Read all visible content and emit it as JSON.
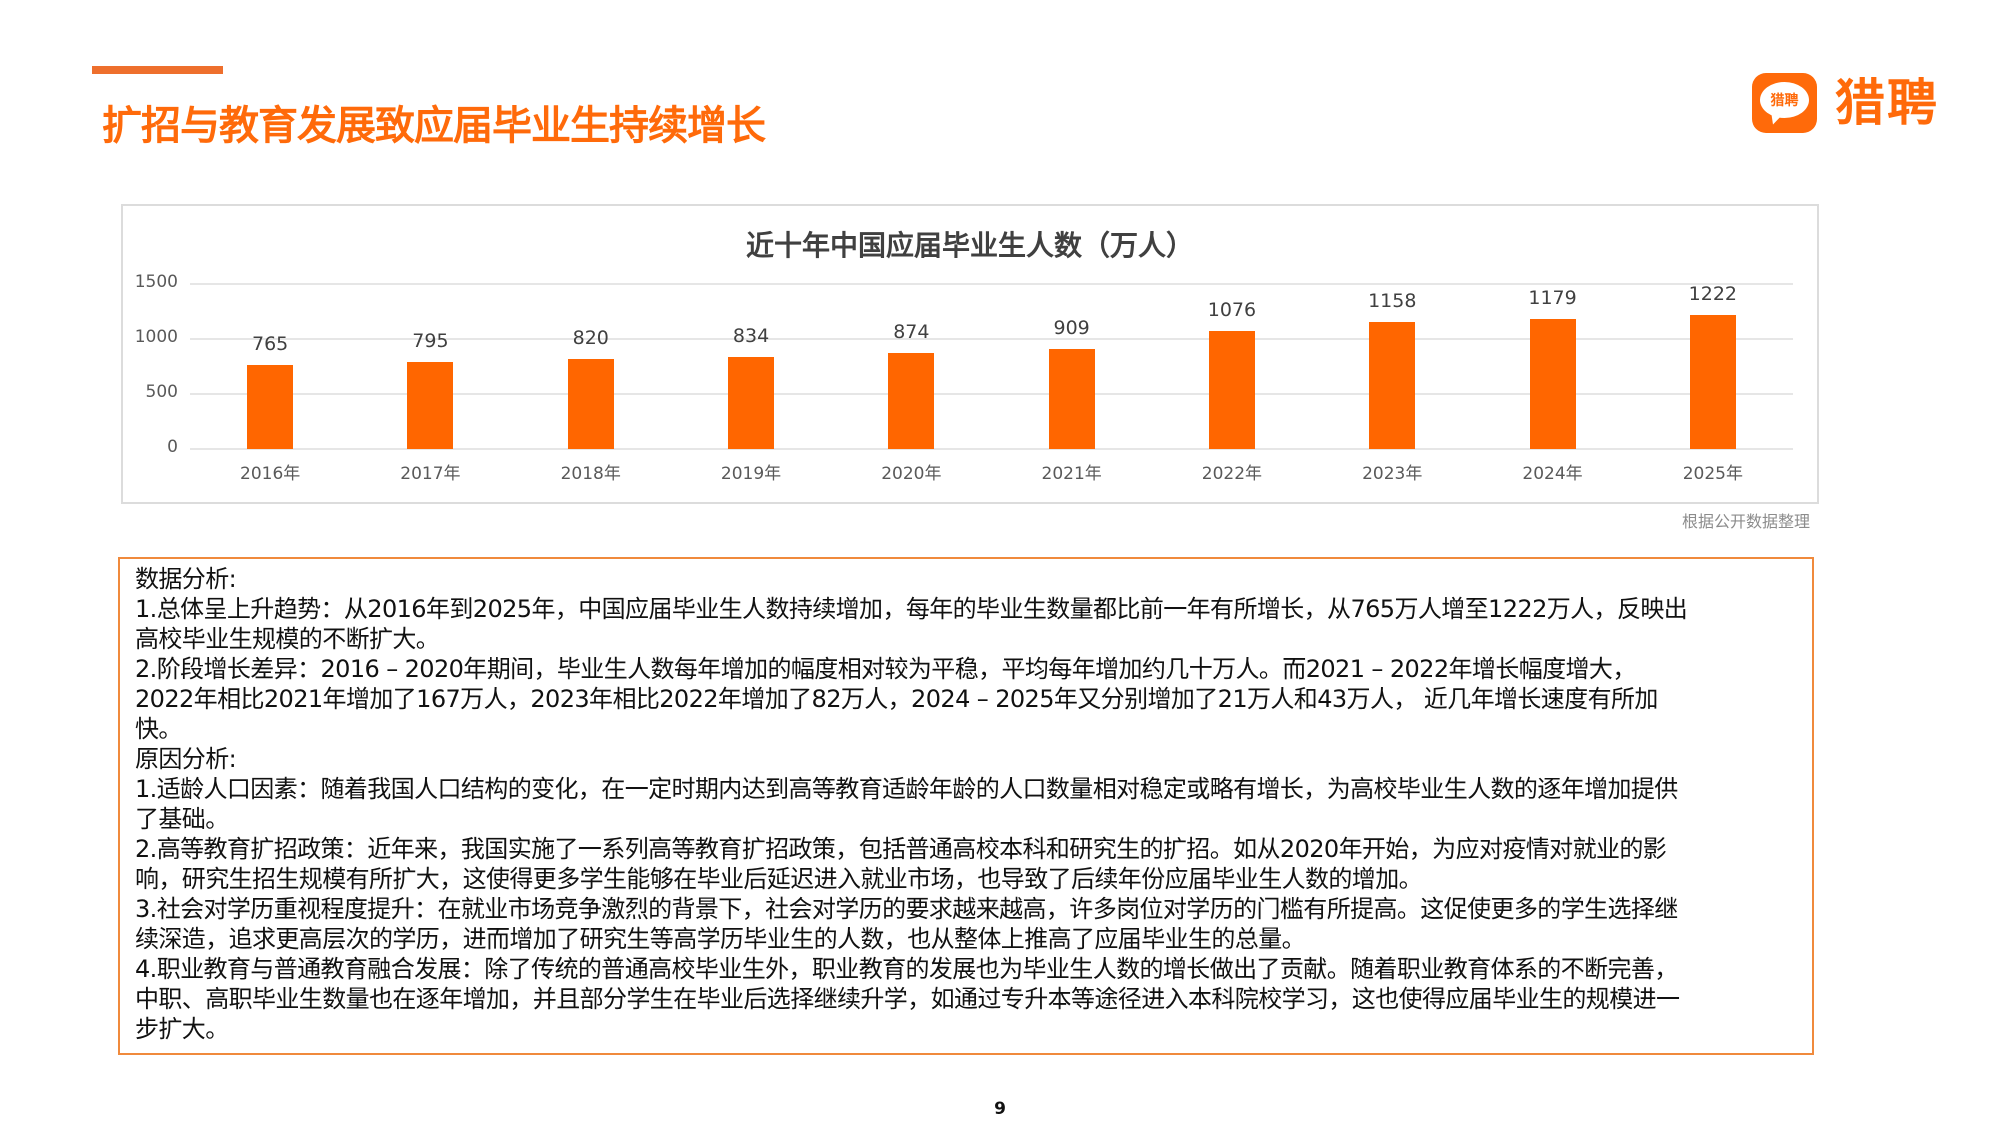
{
  "header": {
    "title": "扩招与教育发展致应届毕业生持续增长",
    "accent_color": "#EE6F2D",
    "title_color": "#FF6A0A"
  },
  "logo": {
    "icon_text": "猎聘",
    "word": "猎聘",
    "color": "#FF6A0A"
  },
  "chart_data": {
    "type": "bar",
    "title": "近十年中国应届毕业生人数（万人）",
    "categories": [
      "2016年",
      "2017年",
      "2018年",
      "2019年",
      "2020年",
      "2021年",
      "2022年",
      "2023年",
      "2024年",
      "2025年"
    ],
    "values": [
      765,
      795,
      820,
      834,
      874,
      909,
      1076,
      1158,
      1179,
      1222
    ],
    "xlabel": "",
    "ylabel": "",
    "ylim": [
      0,
      1500
    ],
    "yticks": [
      0,
      500,
      1000,
      1500
    ],
    "grid": true,
    "data_labels": true,
    "bar_color": "#FF6600",
    "legend": "none"
  },
  "chart": {
    "source_note": "根据公开数据整理"
  },
  "analysis": {
    "lines": [
      "数据分析:",
      "1.总体呈上升趋势：从2016年到2025年，中国应届毕业生人数持续增加，每年的毕业生数量都比前一年有所增长，从765万人增至1222万人，反映出",
      "高校毕业生规模的不断扩大。",
      "2.阶段增长差异：2016 – 2020年期间，毕业生人数每年增加的幅度相对较为平稳，平均每年增加约几十万人。而2021 – 2022年增长幅度增大，",
      "2022年相比2021年增加了167万人，2023年相比2022年增加了82万人，2024 – 2025年又分别增加了21万人和43万人， 近几年增长速度有所加",
      "快。",
      "原因分析:",
      "1.适龄人口因素：随着我国人口结构的变化，在一定时期内达到高等教育适龄年龄的人口数量相对稳定或略有增长，为高校毕业生人数的逐年增加提供",
      "了基础。",
      "2.高等教育扩招政策：近年来，我国实施了一系列高等教育扩招政策，包括普通高校本科和研究生的扩招。如从2020年开始，为应对疫情对就业的影",
      "响，研究生招生规模有所扩大，这使得更多学生能够在毕业后延迟进入就业市场，也导致了后续年份应届毕业生人数的增加。",
      "3.社会对学历重视程度提升：在就业市场竞争激烈的背景下，社会对学历的要求越来越高，许多岗位对学历的门槛有所提高。这促使更多的学生选择继",
      "续深造，追求更高层次的学历，进而增加了研究生等高学历毕业生的人数，也从整体上推高了应届毕业生的总量。",
      "4.职业教育与普通教育融合发展：除了传统的普通高校毕业生外，职业教育的发展也为毕业生人数的增长做出了贡献。随着职业教育体系的不断完善，",
      "中职、高职毕业生数量也在逐年增加，并且部分学生在毕业后选择继续升学，如通过专升本等途径进入本科院校学习，这也使得应届毕业生的规模进一",
      "步扩大。"
    ],
    "border_color": "#F08A3C"
  },
  "footer": {
    "page_number": "9"
  }
}
